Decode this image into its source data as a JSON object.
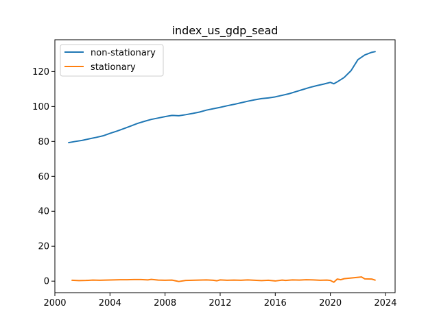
{
  "chart_data": {
    "type": "line",
    "title": "index_us_gdp_sead",
    "xlabel": "",
    "ylabel": "",
    "xlim": [
      2000.0,
      2024.7
    ],
    "ylim": [
      -6.6,
      138.2
    ],
    "x_ticks": [
      2000,
      2004,
      2008,
      2012,
      2016,
      2020,
      2024
    ],
    "x_tick_labels": [
      "2000",
      "2004",
      "2008",
      "2012",
      "2016",
      "2020",
      "2024"
    ],
    "y_ticks": [
      0,
      20,
      40,
      60,
      80,
      100,
      120
    ],
    "y_tick_labels": [
      "0",
      "20",
      "40",
      "60",
      "80",
      "100",
      "120"
    ],
    "grid": false,
    "legend": {
      "position": "top-left",
      "entries": [
        "non-stationary",
        "stationary"
      ]
    },
    "series": [
      {
        "name": "non-stationary",
        "color": "#1f77b4",
        "x": [
          2001.0,
          2001.5,
          2002.0,
          2002.5,
          2003.0,
          2003.5,
          2004.0,
          2004.5,
          2005.0,
          2005.5,
          2006.0,
          2006.5,
          2007.0,
          2007.5,
          2008.0,
          2008.5,
          2009.0,
          2009.5,
          2010.0,
          2010.5,
          2011.0,
          2011.5,
          2012.0,
          2012.5,
          2013.0,
          2013.5,
          2014.0,
          2014.5,
          2015.0,
          2015.5,
          2016.0,
          2016.5,
          2017.0,
          2017.5,
          2018.0,
          2018.5,
          2019.0,
          2019.5,
          2020.0,
          2020.25,
          2020.5,
          2021.0,
          2021.5,
          2022.0,
          2022.5,
          2023.0,
          2023.25
        ],
        "y": [
          79.3,
          80.0,
          80.6,
          81.5,
          82.3,
          83.2,
          84.6,
          85.9,
          87.3,
          88.8,
          90.3,
          91.5,
          92.6,
          93.4,
          94.2,
          94.9,
          94.7,
          95.3,
          96.0,
          96.8,
          97.9,
          98.7,
          99.5,
          100.4,
          101.2,
          102.1,
          103.0,
          103.8,
          104.5,
          104.9,
          105.5,
          106.4,
          107.3,
          108.5,
          109.7,
          110.9,
          111.9,
          112.8,
          113.8,
          113.0,
          114.1,
          116.6,
          120.5,
          126.8,
          129.5,
          131.0,
          131.4
        ]
      },
      {
        "name": "stationary",
        "color": "#ff7f0e",
        "x": [
          2001.25,
          2001.75,
          2002.25,
          2002.75,
          2003.25,
          2003.75,
          2004.25,
          2004.75,
          2005.25,
          2005.75,
          2006.25,
          2006.75,
          2007.0,
          2007.5,
          2008.0,
          2008.5,
          2009.0,
          2009.5,
          2010.0,
          2010.5,
          2011.0,
          2011.5,
          2011.75,
          2012.0,
          2012.5,
          2013.0,
          2013.5,
          2014.0,
          2014.5,
          2015.0,
          2015.5,
          2016.0,
          2016.5,
          2016.75,
          2017.25,
          2017.75,
          2018.25,
          2018.75,
          2019.25,
          2019.75,
          2020.0,
          2020.25,
          2020.5,
          2020.75,
          2021.0,
          2021.5,
          2022.0,
          2022.25,
          2022.5,
          2023.0,
          2023.25
        ],
        "y": [
          0.5,
          0.3,
          0.4,
          0.6,
          0.5,
          0.6,
          0.7,
          0.8,
          0.8,
          0.9,
          0.9,
          0.7,
          1.0,
          0.6,
          0.5,
          0.6,
          -0.2,
          0.4,
          0.5,
          0.6,
          0.7,
          0.5,
          0.2,
          0.7,
          0.5,
          0.6,
          0.5,
          0.7,
          0.5,
          0.3,
          0.5,
          0.1,
          0.6,
          0.4,
          0.7,
          0.6,
          0.8,
          0.7,
          0.5,
          0.6,
          0.4,
          -0.6,
          1.2,
          0.8,
          1.4,
          1.8,
          2.2,
          2.4,
          1.3,
          1.2,
          0.6
        ]
      }
    ]
  }
}
